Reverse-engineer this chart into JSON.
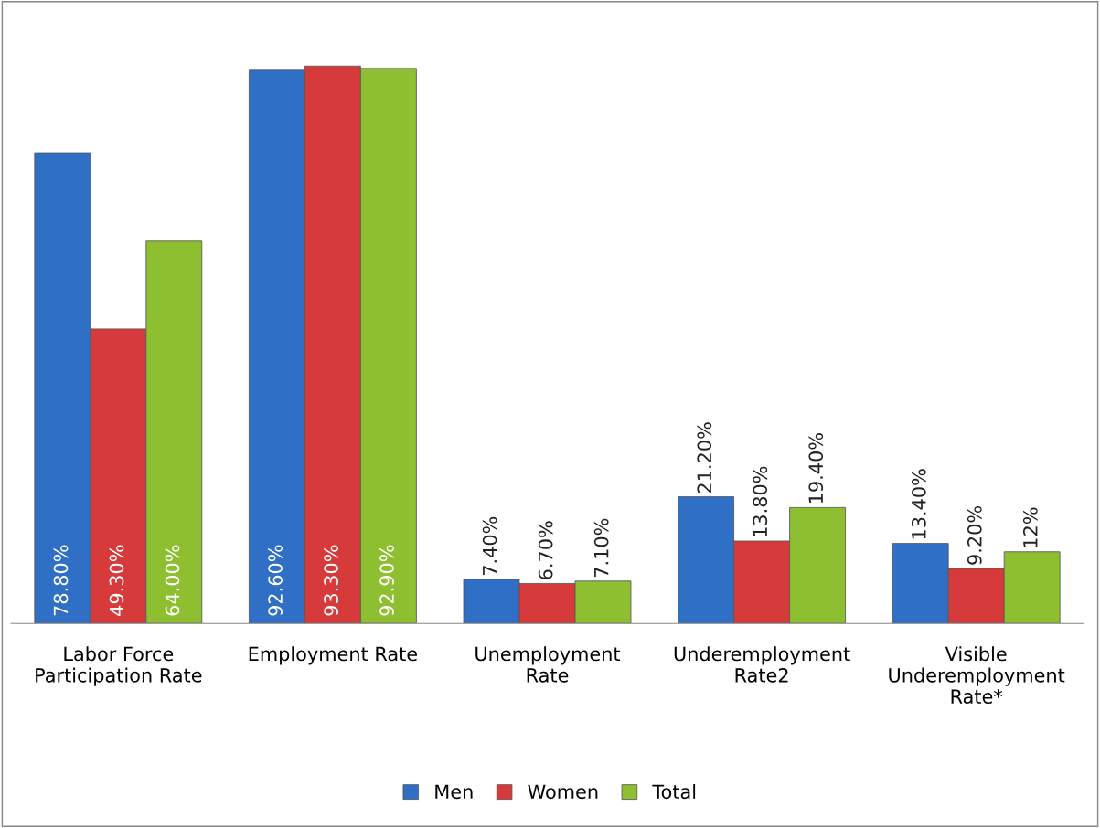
{
  "chart_data": {
    "type": "bar",
    "categories": [
      "Labor Force\nParticipation Rate",
      "Employment Rate",
      "Unemployment\nRate",
      "Underemployment\nRate2",
      "Visible\nUnderemployment\nRate*"
    ],
    "series": [
      {
        "name": "Men",
        "color": "#2f6fc6",
        "values": [
          78.8,
          92.6,
          7.4,
          21.2,
          13.4
        ],
        "value_labels": [
          "78.80%",
          "92.60%",
          "7.40%",
          "21.20%",
          "13.40%"
        ]
      },
      {
        "name": "Women",
        "color": "#d63a3a",
        "values": [
          49.3,
          93.3,
          6.7,
          13.8,
          9.2
        ],
        "value_labels": [
          "49.30%",
          "93.30%",
          "6.70%",
          "13.80%",
          "9.20%"
        ]
      },
      {
        "name": "Total",
        "color": "#8dbf30",
        "values": [
          64.0,
          92.9,
          7.1,
          19.4,
          12
        ],
        "value_labels": [
          "64.00%",
          "92.90%",
          "7.10%",
          "19.40%",
          "12%"
        ]
      }
    ],
    "legend": "bottom"
  }
}
